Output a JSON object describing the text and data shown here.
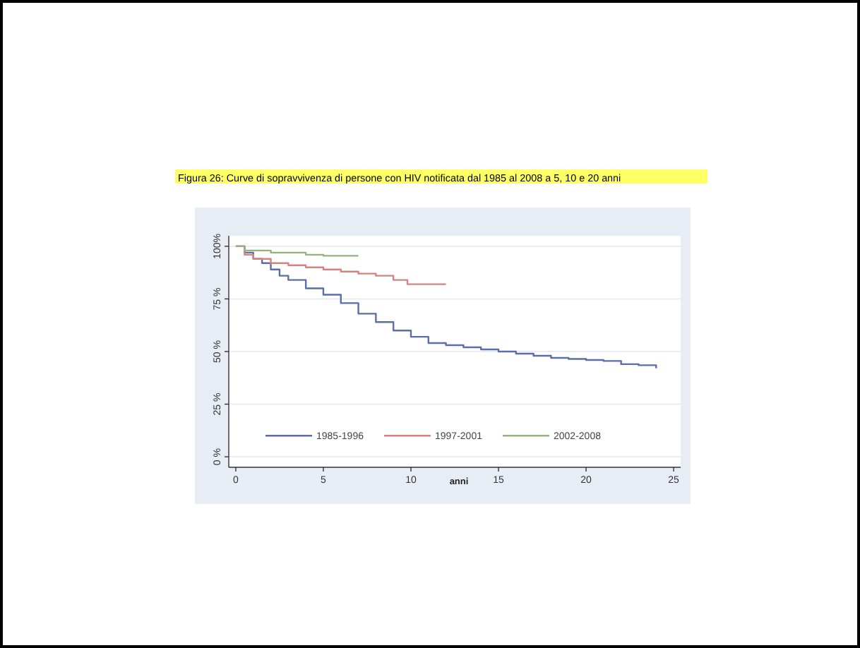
{
  "chart_data": {
    "type": "step",
    "title": "Figura 26: Curve di sopravvivenza di persone con HIV notificata dal 1985 al 2008 a 5, 10 e 20 anni",
    "xlabel": "anni",
    "xlim": [
      -0.4,
      25.4
    ],
    "xticks": [
      0,
      5,
      10,
      15,
      20,
      25
    ],
    "ylim": [
      -5,
      105
    ],
    "yticks": [
      {
        "value": 0,
        "label": "0 %"
      },
      {
        "value": 25,
        "label": "25 %"
      },
      {
        "value": 50,
        "label": "50 %"
      },
      {
        "value": 75,
        "label": "75 %"
      },
      {
        "value": 100,
        "label": "100%"
      }
    ],
    "grid": "y",
    "legend": "bottom",
    "line_style": "solid",
    "series": [
      {
        "name": "1985-1996",
        "color": "#5a6fa8",
        "x": [
          0,
          0.5,
          1,
          1.5,
          2,
          2.5,
          3,
          4,
          5,
          6,
          7,
          8,
          9,
          10,
          11,
          12,
          13,
          14,
          15,
          16,
          17,
          18,
          19,
          20,
          21,
          22,
          23,
          24
        ],
        "values": [
          100,
          97,
          94,
          92,
          89,
          86,
          84,
          80,
          77,
          73,
          68,
          64,
          60,
          57,
          54,
          53,
          52,
          51,
          50,
          49,
          48,
          47,
          46.5,
          46,
          45.5,
          44,
          43.5,
          42
        ]
      },
      {
        "name": "1997-2001",
        "color": "#d9817f",
        "x": [
          0,
          0.5,
          1,
          2,
          3,
          4,
          5,
          6,
          7,
          8,
          9,
          9.8,
          12
        ],
        "values": [
          100,
          96,
          94,
          92,
          91,
          90,
          89,
          88,
          87,
          86,
          84,
          82,
          82
        ]
      },
      {
        "name": "2002-2008",
        "color": "#93b47e",
        "x": [
          0,
          0.5,
          2,
          4,
          5,
          7
        ],
        "values": [
          100,
          98,
          97,
          96,
          95.5,
          95.5
        ]
      }
    ]
  }
}
